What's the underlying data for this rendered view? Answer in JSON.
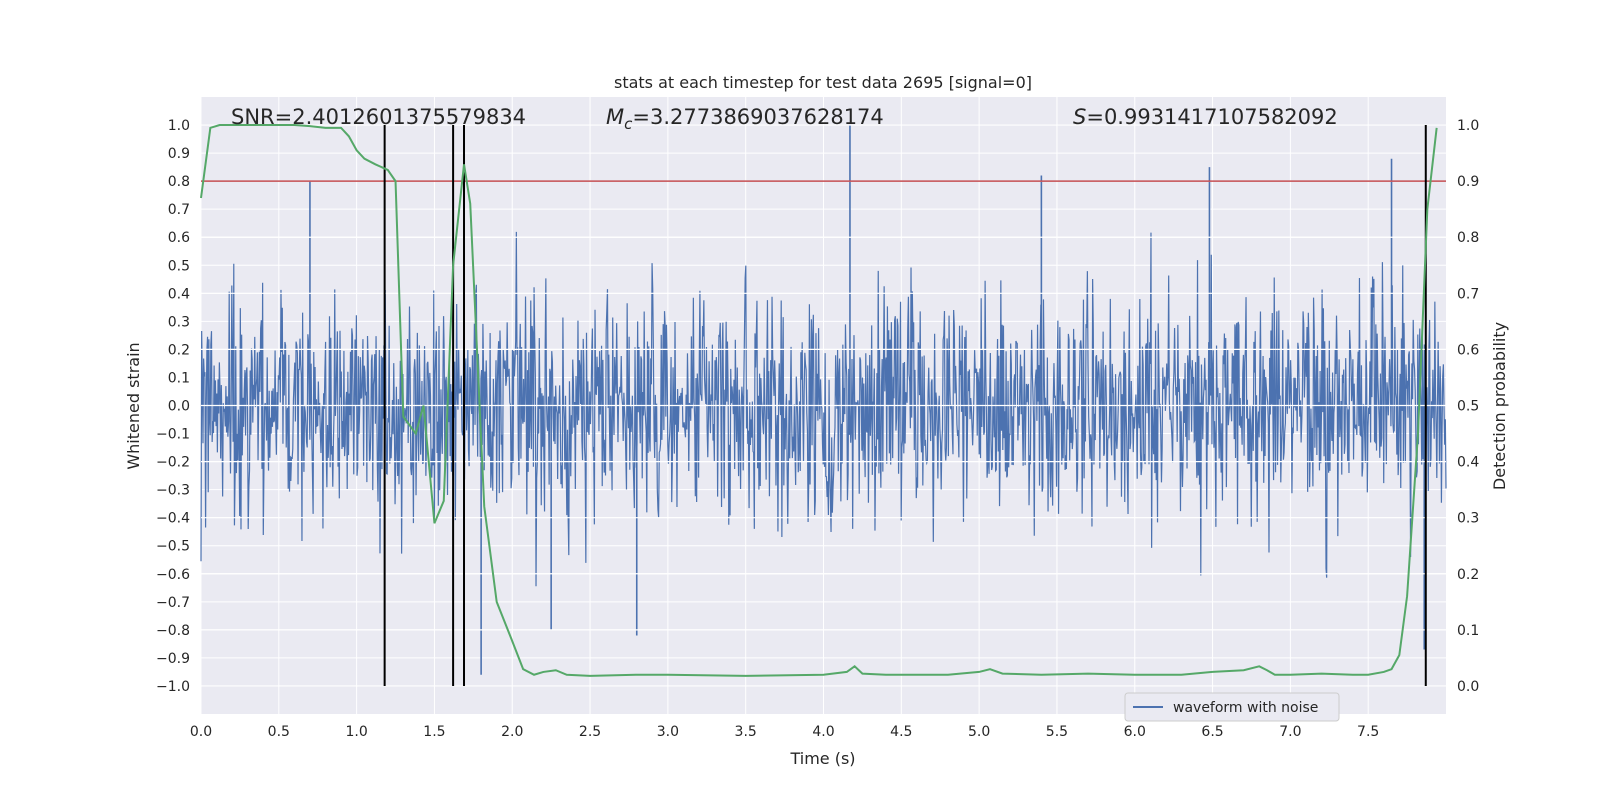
{
  "chart_data": {
    "type": "line",
    "title": "stats at each timestep for test data 2695 [signal=0]",
    "xlabel": "Time (s)",
    "ylabel_left": "Whitened strain",
    "ylabel_right": "Detection probability",
    "xlim": [
      0.0,
      8.0
    ],
    "ylim_left": [
      -1.1,
      1.1
    ],
    "ylim_right": [
      -0.05,
      1.05
    ],
    "x_ticks": [
      0.0,
      0.5,
      1.0,
      1.5,
      2.0,
      2.5,
      3.0,
      3.5,
      4.0,
      4.5,
      5.0,
      5.5,
      6.0,
      6.5,
      7.0,
      7.5
    ],
    "x_tick_labels": [
      "0.0",
      "0.5",
      "1.0",
      "1.5",
      "2.0",
      "2.5",
      "3.0",
      "3.5",
      "4.0",
      "4.5",
      "5.0",
      "5.5",
      "6.0",
      "6.5",
      "7.0",
      "7.5"
    ],
    "y_left_ticks": [
      -1.0,
      -0.9,
      -0.8,
      -0.7,
      -0.6,
      -0.5,
      -0.4,
      -0.3,
      -0.2,
      -0.1,
      0.0,
      0.1,
      0.2,
      0.3,
      0.4,
      0.5,
      0.6,
      0.7,
      0.8,
      0.9,
      1.0
    ],
    "y_left_tick_labels": [
      "−1.0",
      "−0.9",
      "−0.8",
      "−0.7",
      "−0.6",
      "−0.5",
      "−0.4",
      "−0.3",
      "−0.2",
      "−0.1",
      "0.0",
      "0.1",
      "0.2",
      "0.3",
      "0.4",
      "0.5",
      "0.6",
      "0.7",
      "0.8",
      "0.9",
      "1.0"
    ],
    "y_right_ticks": [
      0.0,
      0.1,
      0.2,
      0.3,
      0.4,
      0.5,
      0.6,
      0.7,
      0.8,
      0.9,
      1.0
    ],
    "y_right_tick_labels": [
      "0.0",
      "0.1",
      "0.2",
      "0.3",
      "0.4",
      "0.5",
      "0.6",
      "0.7",
      "0.8",
      "0.9",
      "1.0"
    ],
    "annotations": {
      "snr": "SNR=2.4012601375579834",
      "mc_symbol": "M",
      "mc_sub": "c",
      "mc_value": "=3.2773869037628174",
      "s_symbol": "S",
      "s_value": "=0.9931417107582092"
    },
    "threshold": {
      "value": 0.9,
      "axis": "right",
      "color": "#c44e52"
    },
    "detection_vlines": [
      1.18,
      1.62,
      1.69,
      7.87
    ],
    "series": [
      {
        "name": "waveform with noise",
        "axis": "left",
        "color": "#4c72b0",
        "style": "dense noise trace",
        "envelope_typical": [
          -0.4,
          0.4
        ],
        "peaks": [
          {
            "x": 0.7,
            "y": 0.8
          },
          {
            "x": 1.8,
            "y": -0.96
          },
          {
            "x": 2.25,
            "y": -0.8
          },
          {
            "x": 2.8,
            "y": -0.82
          },
          {
            "x": 4.17,
            "y": 1.0
          },
          {
            "x": 5.4,
            "y": 0.82
          },
          {
            "x": 6.48,
            "y": 0.85
          },
          {
            "x": 7.65,
            "y": 0.88
          },
          {
            "x": 7.86,
            "y": -0.87
          }
        ]
      },
      {
        "name": "detection probability",
        "axis": "right",
        "color": "#55a868",
        "x": [
          0.0,
          0.06,
          0.12,
          0.2,
          0.3,
          0.4,
          0.5,
          0.6,
          0.7,
          0.8,
          0.9,
          0.95,
          1.0,
          1.05,
          1.12,
          1.2,
          1.25,
          1.3,
          1.38,
          1.43,
          1.5,
          1.56,
          1.62,
          1.69,
          1.73,
          1.82,
          1.9,
          2.0,
          2.07,
          2.14,
          2.2,
          2.28,
          2.35,
          2.5,
          2.8,
          3.0,
          3.5,
          4.0,
          4.15,
          4.2,
          4.25,
          4.4,
          4.8,
          5.0,
          5.07,
          5.15,
          5.4,
          5.7,
          6.0,
          6.3,
          6.5,
          6.7,
          6.8,
          6.85,
          6.9,
          7.0,
          7.2,
          7.4,
          7.5,
          7.6,
          7.65,
          7.7,
          7.75,
          7.82,
          7.88,
          7.94
        ],
        "values": [
          0.87,
          0.995,
          1.0,
          1.0,
          1.0,
          1.0,
          1.0,
          1.0,
          0.998,
          0.995,
          0.995,
          0.98,
          0.955,
          0.94,
          0.93,
          0.92,
          0.9,
          0.48,
          0.45,
          0.5,
          0.29,
          0.33,
          0.75,
          0.93,
          0.86,
          0.32,
          0.15,
          0.08,
          0.03,
          0.02,
          0.025,
          0.028,
          0.02,
          0.018,
          0.02,
          0.02,
          0.018,
          0.02,
          0.025,
          0.035,
          0.022,
          0.02,
          0.02,
          0.025,
          0.03,
          0.022,
          0.02,
          0.022,
          0.02,
          0.02,
          0.025,
          0.028,
          0.035,
          0.028,
          0.02,
          0.02,
          0.022,
          0.02,
          0.02,
          0.025,
          0.03,
          0.055,
          0.16,
          0.45,
          0.85,
          0.995
        ]
      }
    ],
    "legend": {
      "position": "lower-right",
      "entries": [
        "waveform with noise"
      ]
    }
  }
}
